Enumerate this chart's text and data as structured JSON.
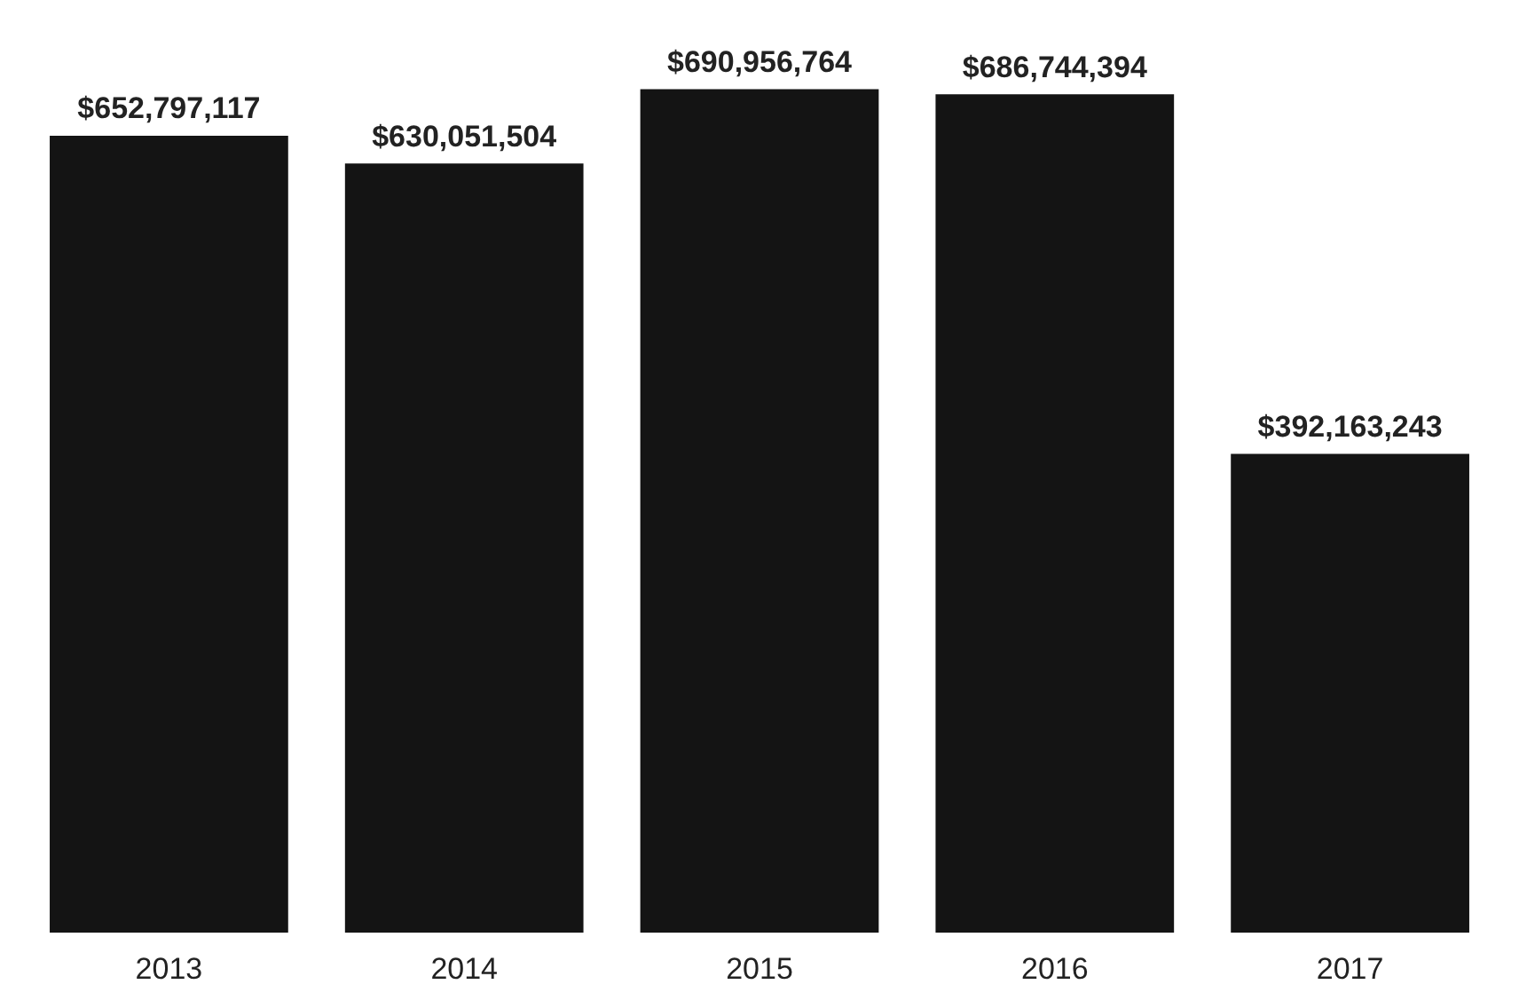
{
  "chart_data": {
    "type": "bar",
    "categories": [
      "2013",
      "2014",
      "2015",
      "2016",
      "2017"
    ],
    "values": [
      652797117,
      630051504,
      690956764,
      686744394,
      392163243
    ],
    "value_labels": [
      "$652,797,117",
      "$630,051,504",
      "$690,956,764",
      "$686,744,394",
      "$392,163,243"
    ],
    "color": "#141414"
  }
}
